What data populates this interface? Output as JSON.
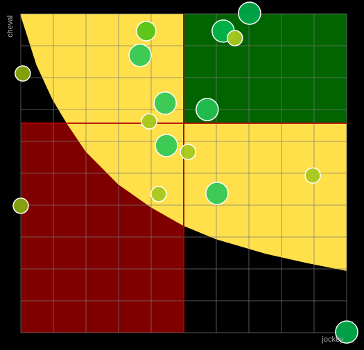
{
  "chart_data": {
    "type": "bubble",
    "x_label": "jockey",
    "y_label": "cheval",
    "xlim": [
      0,
      100
    ],
    "ylim": [
      0,
      100
    ],
    "xticks": [
      0,
      10,
      20,
      30,
      40,
      50,
      60,
      70,
      80,
      90,
      100
    ],
    "yticks": [
      0,
      10,
      20,
      30,
      40,
      50,
      60,
      70,
      80,
      90,
      100
    ],
    "grid": true,
    "grid_color": "#777777",
    "threshold_x": 50,
    "threshold_y": 65.7,
    "threshold_color": "#b00000",
    "low_zone_color": "#800000",
    "high_zone_color": "#006400",
    "boundary_curve": {
      "color": "#ffe04a",
      "x": [
        0,
        5,
        10,
        14.3,
        20,
        30,
        40,
        50,
        60,
        75,
        88,
        100
      ],
      "y": [
        100,
        84,
        73,
        65.7,
        57,
        46.7,
        39.5,
        33.7,
        29.5,
        25,
        22,
        19.6
      ]
    },
    "x": [
      70.2,
      38.5,
      62.1,
      65.7,
      36.6,
      0.6,
      44.3,
      57.2,
      39.4,
      44.7,
      51.3,
      89.6,
      0,
      42.3,
      60.2,
      100
    ],
    "values": [
      100.2,
      94.6,
      94.6,
      92.4,
      87,
      81.3,
      72,
      70,
      66.3,
      58.7,
      56.7,
      49.3,
      39.8,
      43.5,
      43.7,
      0.2
    ],
    "sizes": [
      16,
      14,
      16,
      11,
      16,
      11,
      16,
      16,
      11,
      16,
      11,
      11,
      11,
      11,
      16,
      16
    ],
    "colors": [
      "#00a84a",
      "#55c415",
      "#00b34a",
      "#a8c820",
      "#33c855",
      "#88a80e",
      "#33c855",
      "#22c050",
      "#a8c820",
      "#33c855",
      "#a8c820",
      "#a8c820",
      "#88a80e",
      "#a8c820",
      "#33c855",
      "#00a84a"
    ]
  }
}
